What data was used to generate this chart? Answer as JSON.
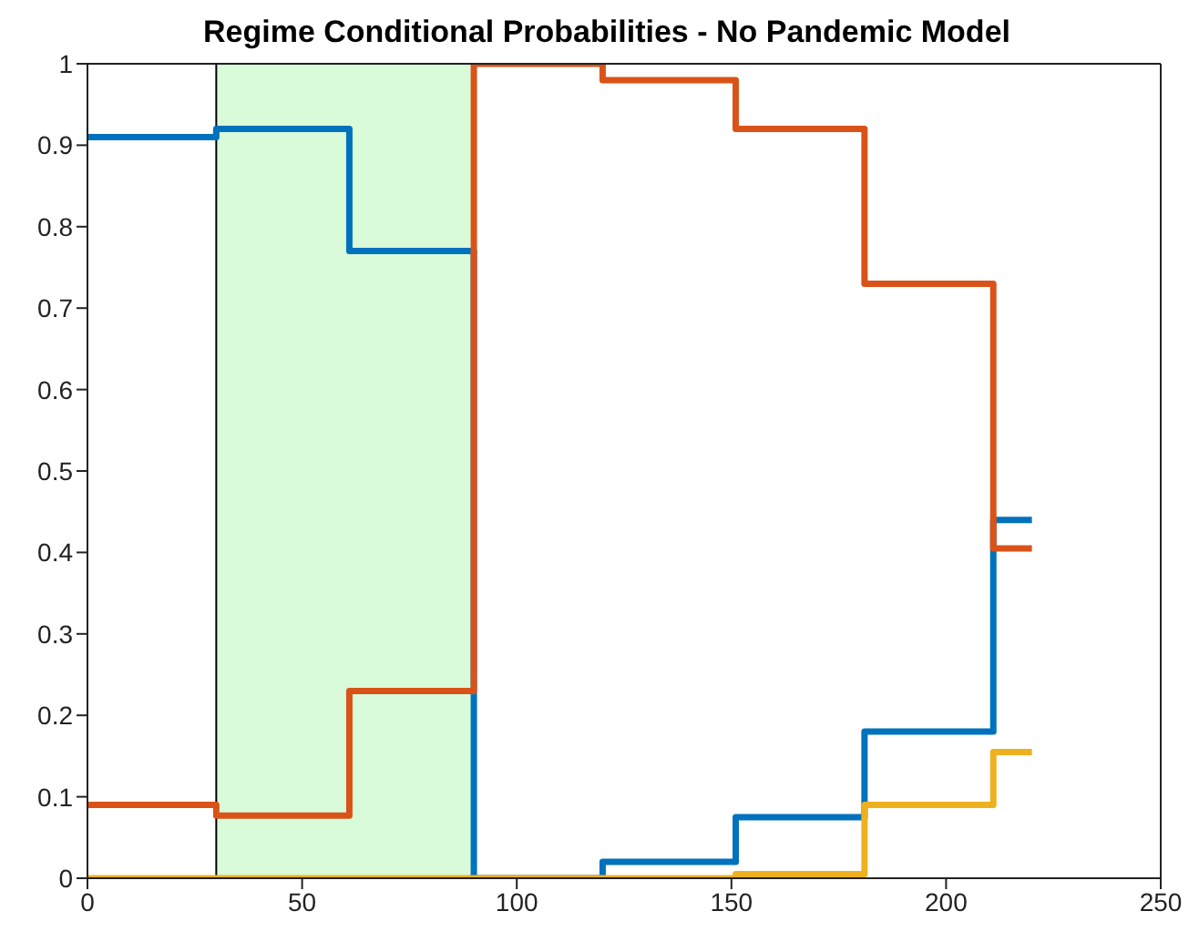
{
  "chart_data": {
    "type": "step",
    "title": "Regime Conditional Probabilities - No Pandemic Model",
    "x": [
      0,
      30,
      61,
      90,
      120,
      151,
      181,
      211,
      220
    ],
    "series": [
      {
        "color": "#0072bd",
        "values": [
          0.91,
          0.92,
          0.77,
          0,
          0.02,
          0.075,
          0.18,
          0.44,
          0.44
        ]
      },
      {
        "color": "#d95319",
        "values": [
          0.09,
          0.077,
          0.23,
          1,
          0.98,
          0.92,
          0.73,
          0.405,
          0.405
        ]
      },
      {
        "color": "#edb120",
        "values": [
          0,
          0,
          0,
          0,
          0,
          0.005,
          0.09,
          0.155,
          0.155
        ]
      }
    ],
    "xlim": [
      0,
      250
    ],
    "xticks": [
      0,
      50,
      100,
      150,
      200,
      250
    ],
    "ylim": [
      0,
      1
    ],
    "yticks": [
      0,
      0.1,
      0.2,
      0.3,
      0.4,
      0.5,
      0.6,
      0.7,
      0.8,
      0.9,
      1
    ],
    "bands": [
      {
        "axis": "x",
        "from": 30,
        "to": 90,
        "color": "#d9fbd9"
      }
    ],
    "grid": false,
    "legend": false,
    "marker": "none",
    "line_style": "solid"
  }
}
